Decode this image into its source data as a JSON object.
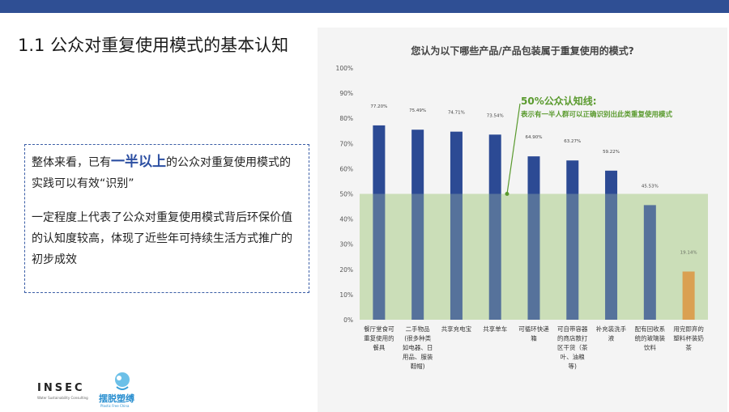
{
  "slide": {
    "title": "1.1 公众对重复使用模式的基本认知"
  },
  "textbox": {
    "p1_pre": "整体来看，已有",
    "p1_highlight": "一半以上",
    "p1_post": "的公众对重复使用模式的实践可以有效“识别”",
    "p2": "一定程度上代表了公众对重复使用模式背后环保价值的认知度较高，体现了近些年可持续生活方式推广的初步成效"
  },
  "logos": {
    "insec": "INSEC",
    "insec_sub": "Water Sustainability Consulting",
    "partner": "摆脱塑缚",
    "partner_sub": "Plastic Free China"
  },
  "chart_data": {
    "type": "bar",
    "title": "您认为以下哪些产品/产品包装属于重复使用的模式?",
    "categories": [
      [
        "餐厅堂食可",
        "重复使用的",
        "餐具"
      ],
      [
        "二手物品",
        "(很多种类",
        "如电器、日",
        "用品、服装",
        "鞋帽)"
      ],
      [
        "共享充电宝"
      ],
      [
        "共享单车"
      ],
      [
        "可循环快递",
        "箱"
      ],
      [
        "可自带容器",
        "的商店散打",
        "区干货（茶",
        "叶、油粮",
        "等)"
      ],
      [
        "补充装洗手",
        "液"
      ],
      [
        "配有回收系",
        "统的玻璃装",
        "饮料"
      ],
      [
        "用完即弃的",
        "塑料杯装奶",
        "茶"
      ]
    ],
    "values": [
      77.2,
      75.49,
      74.71,
      73.54,
      64.9,
      63.27,
      59.22,
      45.53,
      19.14
    ],
    "value_labels": [
      "77.20%",
      "75.49%",
      "74.71%",
      "73.54%",
      "64.90%",
      "63.27%",
      "59.22%",
      "45.53%",
      "19.14%"
    ],
    "bar_colors": [
      "#2c4a94",
      "#2c4a94",
      "#2c4a94",
      "#2c4a94",
      "#2c4a94",
      "#2c4a94",
      "#2c4a94",
      "#2c4a94",
      "#e2892f"
    ],
    "ylim": [
      0,
      100
    ],
    "yticks": [
      "0%",
      "10%",
      "20%",
      "30%",
      "40%",
      "50%",
      "60%",
      "70%",
      "80%",
      "90%",
      "100%"
    ],
    "threshold": {
      "value": 50,
      "label": "50%公众认知线:",
      "sublabel": "表示有一半人群可以正确识别出此类重复使用模式",
      "band_color": "#c5dbb0",
      "line_color": "#5a9a2e"
    }
  }
}
